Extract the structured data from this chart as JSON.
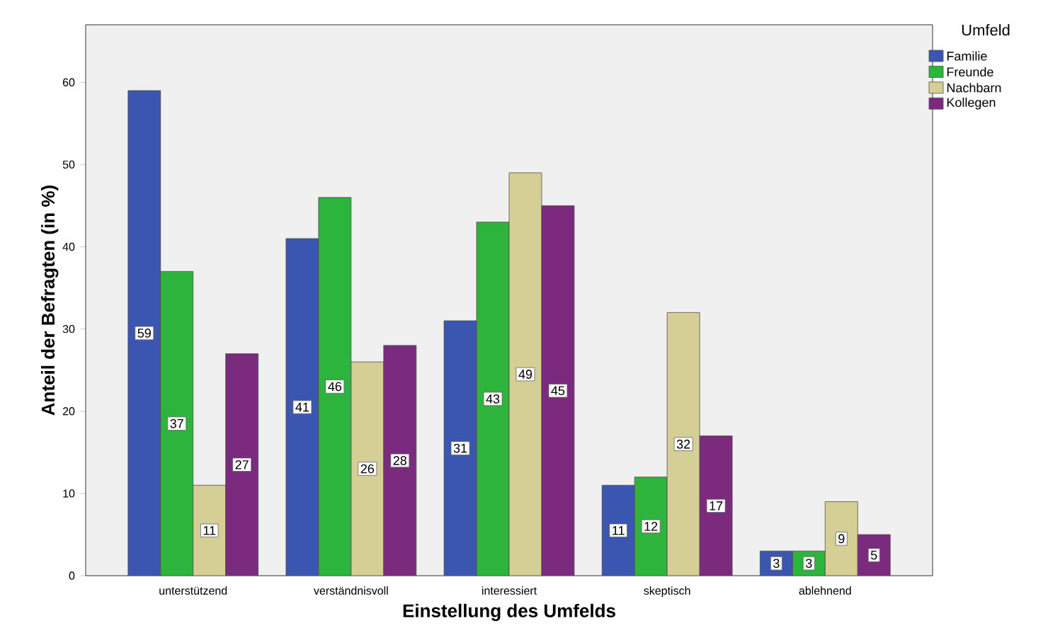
{
  "chart_data": {
    "type": "bar",
    "xlabel": "Einstellung des Umfelds",
    "ylabel": "Anteil der Befragten (in %)",
    "legend_title": "Umfeld",
    "categories": [
      "unterstützend",
      "verständnisvoll",
      "interessiert",
      "skeptisch",
      "ablehnend"
    ],
    "series": [
      {
        "name": "Familie",
        "color": "#3a56b0",
        "values": [
          59,
          41,
          31,
          11,
          3
        ]
      },
      {
        "name": "Freunde",
        "color": "#2db43c",
        "values": [
          37,
          46,
          43,
          12,
          3
        ]
      },
      {
        "name": "Nachbarn",
        "color": "#d6cf95",
        "values": [
          11,
          26,
          49,
          32,
          9
        ]
      },
      {
        "name": "Kollegen",
        "color": "#7b2a7e",
        "values": [
          27,
          28,
          45,
          17,
          5
        ]
      }
    ],
    "ylim": [
      0,
      67
    ],
    "yticks": [
      0,
      10,
      20,
      30,
      40,
      50,
      60
    ],
    "grid": false,
    "legend": "right",
    "data_labels": true
  }
}
